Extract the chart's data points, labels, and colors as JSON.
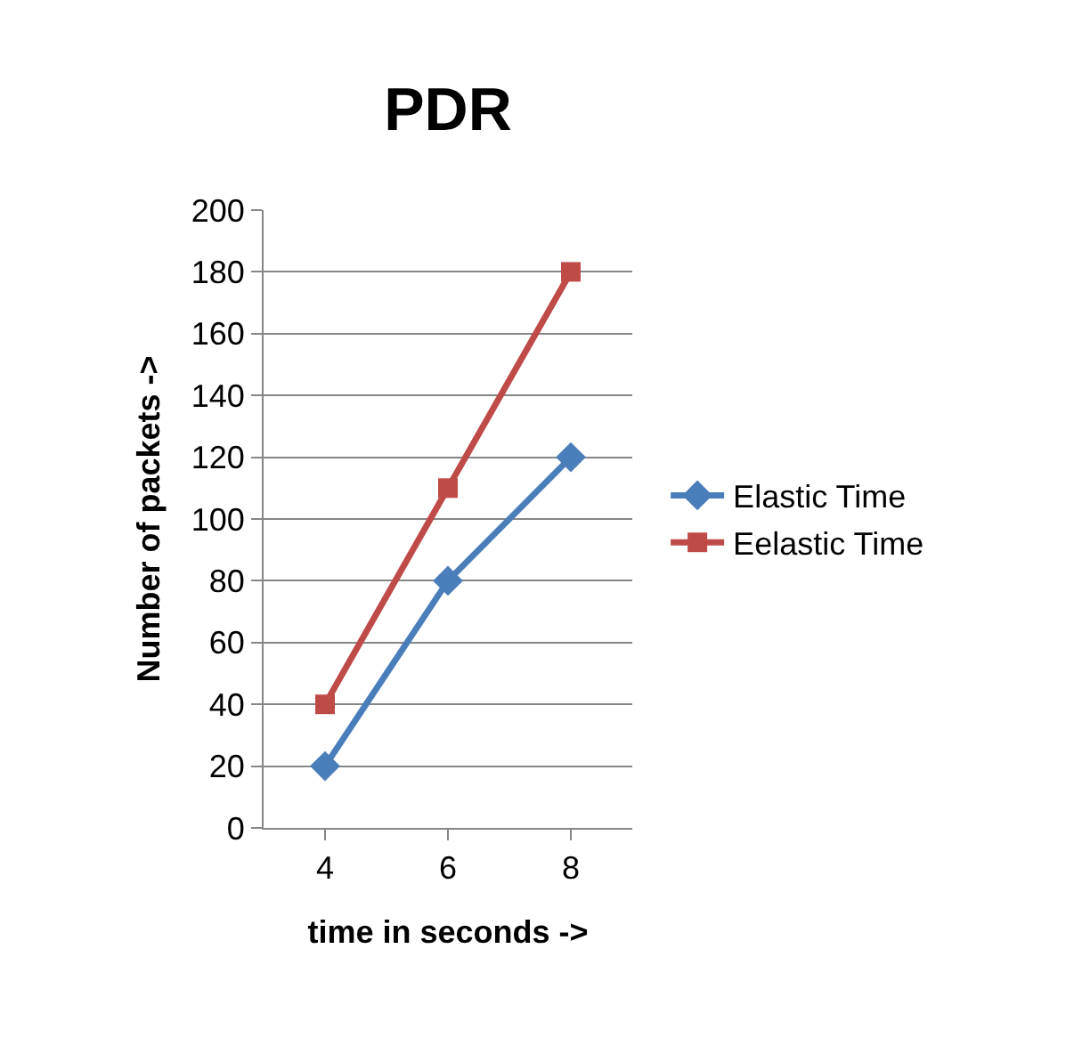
{
  "chart_data": {
    "type": "line",
    "title": "PDR",
    "xlabel": "time in seconds ->",
    "ylabel": "Number of packets ->",
    "categories": [
      "4",
      "6",
      "8"
    ],
    "series": [
      {
        "name": "Elastic Time",
        "color": "#4a7ebb",
        "values": [
          20,
          80,
          120
        ],
        "marker": "diamond"
      },
      {
        "name": "Eelastic Time",
        "color": "#be4b48",
        "values": [
          40,
          110,
          180
        ],
        "marker": "square"
      }
    ],
    "ylim": [
      0,
      200
    ],
    "yticks": [
      0,
      20,
      40,
      60,
      80,
      100,
      120,
      140,
      160,
      180,
      200
    ],
    "grid": "y",
    "legend": "right",
    "line_style": "solid"
  }
}
